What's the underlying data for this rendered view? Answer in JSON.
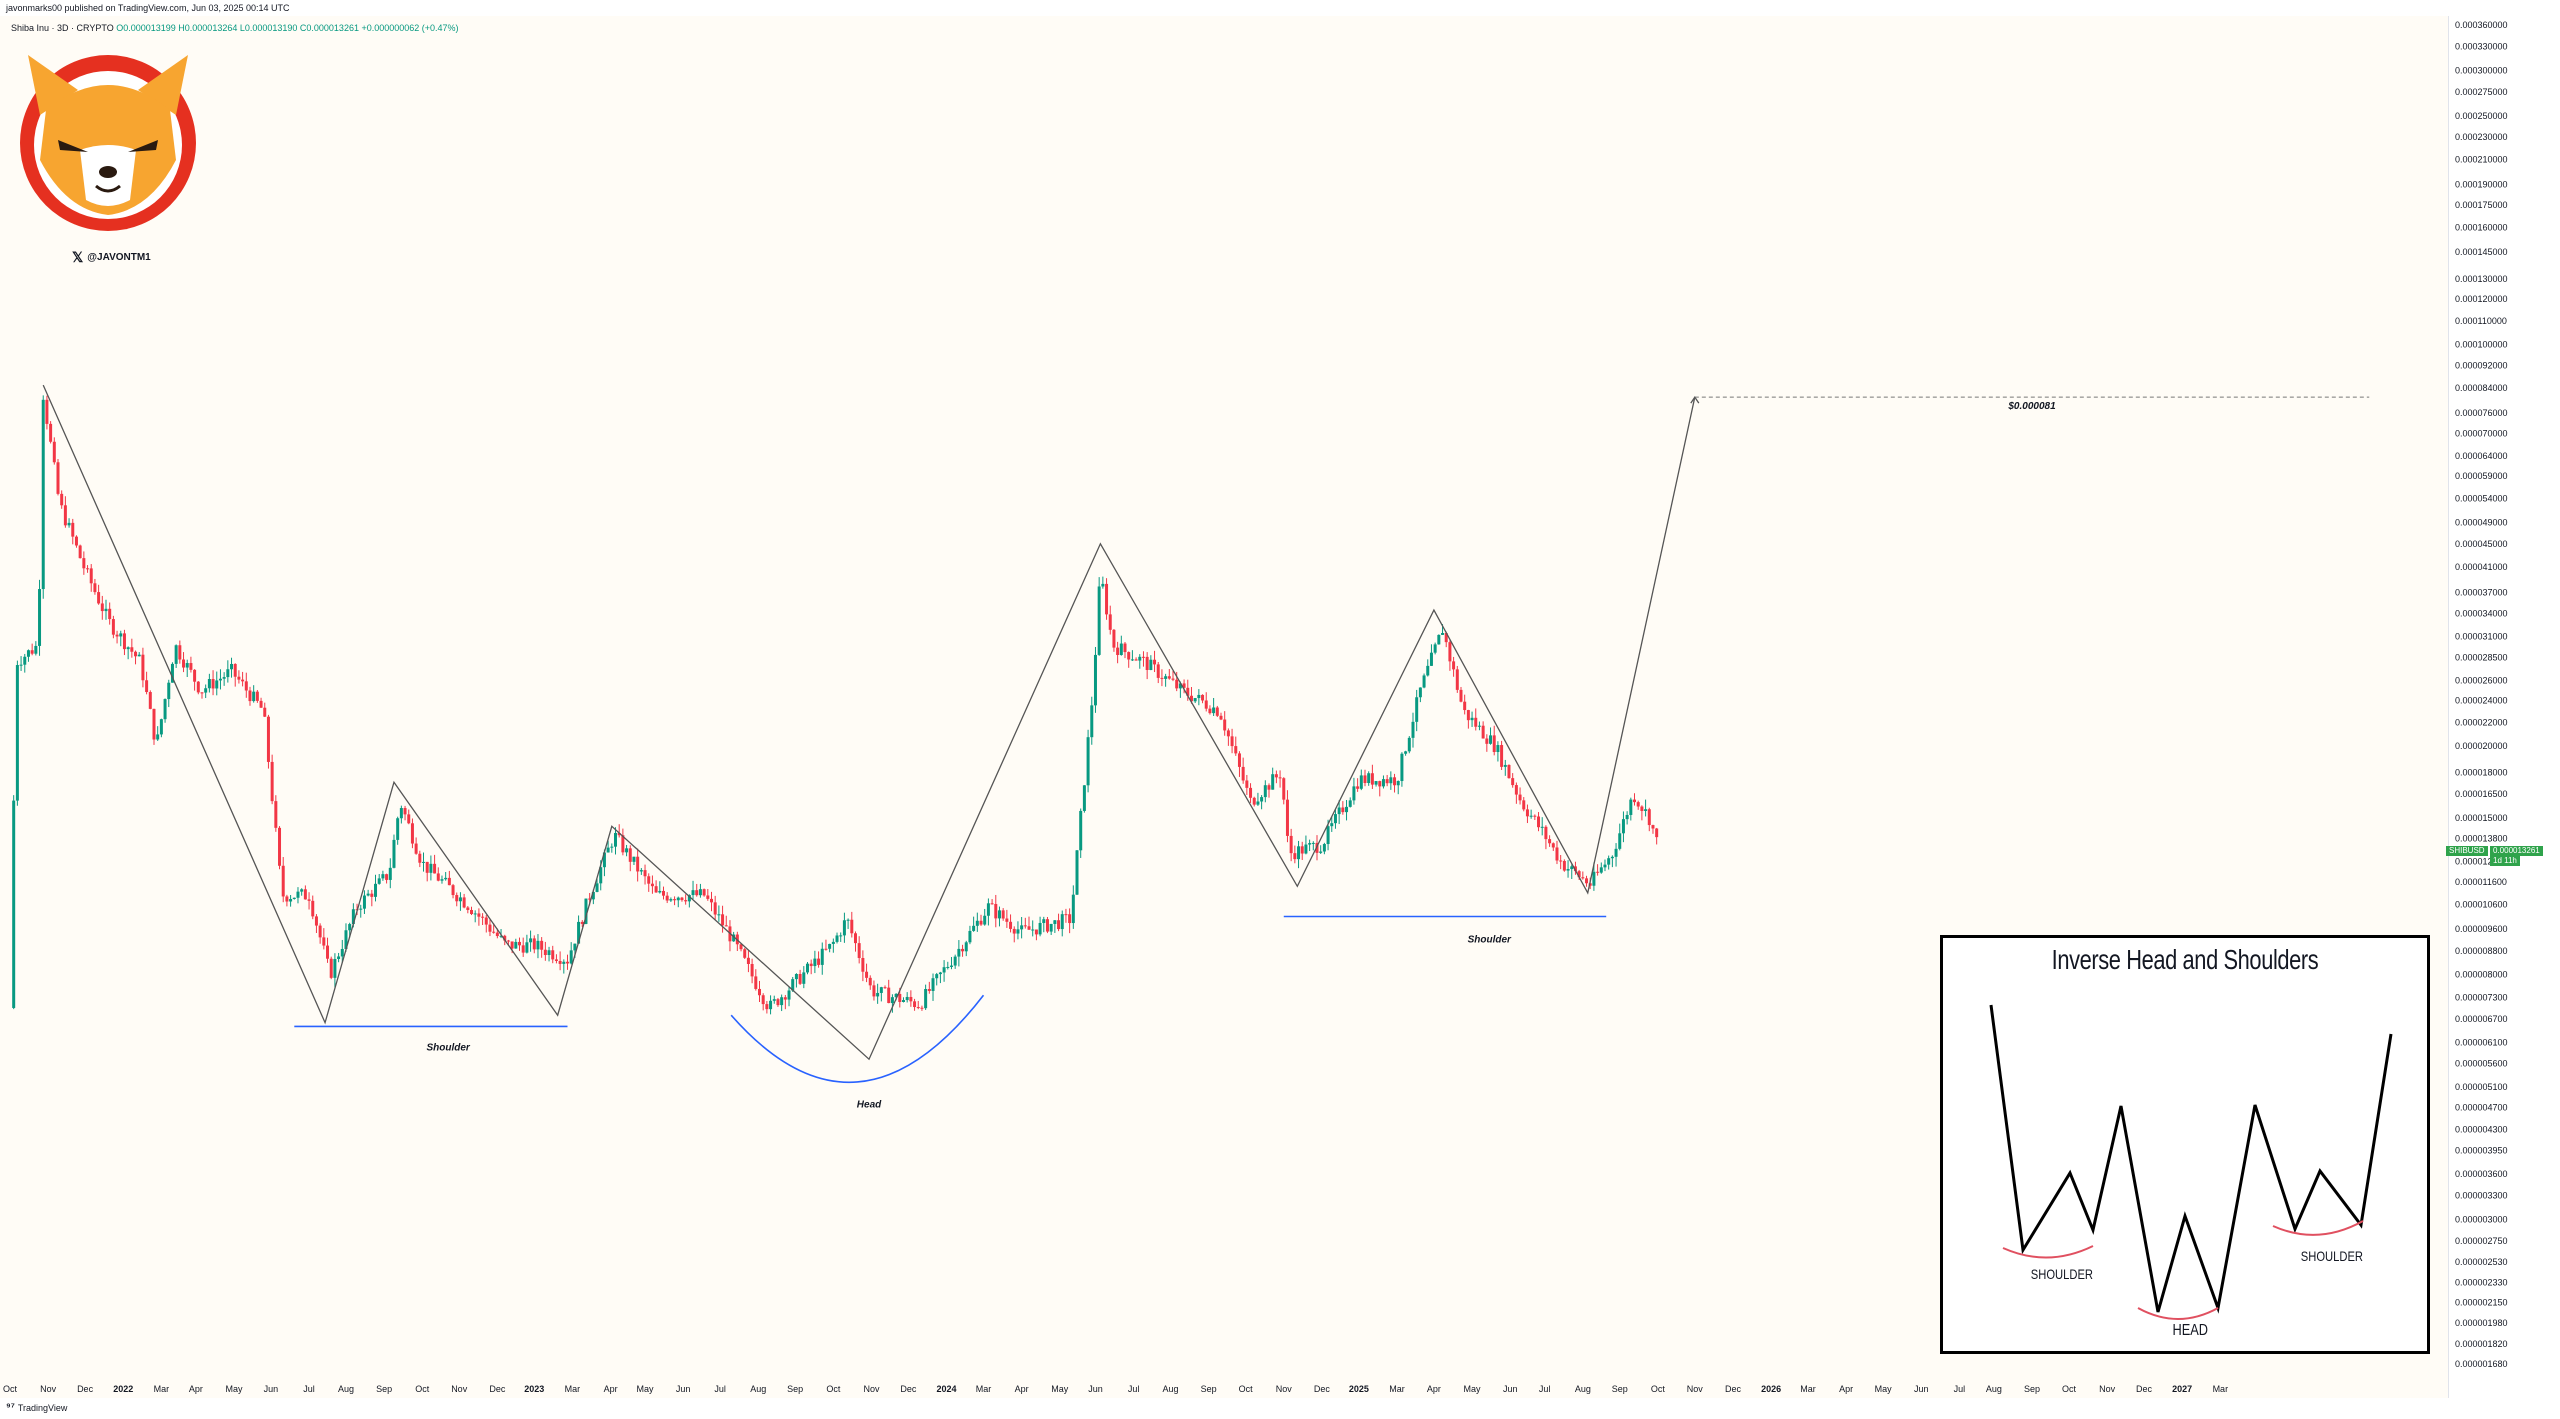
{
  "header": {
    "published": "javonmarks00 published on TradingView.com, Jun 03, 2025 00:14 UTC",
    "symbol": "Shiba Inu · 3D · CRYPTO",
    "ohlc": "O0.000013199  H0.000013264  L0.000013190  C0.000013261  +0.000000062 (+0.47%)"
  },
  "branding": {
    "handle": "@JAVONTM1",
    "x_icon": "x-logo-icon",
    "logo_icon": "shiba-inu-logo-icon",
    "footer": "TradingView"
  },
  "colors": {
    "up": "#089981",
    "down": "#f23645",
    "baseline": "#2962ff",
    "pattern_line": "#555555",
    "inset_arc": "#e05060"
  },
  "chart_data": {
    "type": "candlestick",
    "title": "Shiba Inu · 3D · CRYPTO",
    "scale": "log",
    "grid": false,
    "x_ticks": [
      "Oct",
      "Nov",
      "Dec",
      "2022",
      "Mar",
      "Apr",
      "May",
      "Jun",
      "Jul",
      "Aug",
      "Sep",
      "Oct",
      "Nov",
      "Dec",
      "2023",
      "Mar",
      "Apr",
      "May",
      "Jun",
      "Jul",
      "Aug",
      "Sep",
      "Oct",
      "Nov",
      "Dec",
      "2024",
      "Mar",
      "Apr",
      "May",
      "Jun",
      "Jul",
      "Aug",
      "Sep",
      "Oct",
      "Nov",
      "Dec",
      "2025",
      "Mar",
      "Apr",
      "May",
      "Jun",
      "Jul",
      "Aug",
      "Sep",
      "Oct",
      "Nov",
      "Dec",
      "2026",
      "Mar",
      "Apr",
      "May",
      "Jun",
      "Jul",
      "Aug",
      "Sep",
      "Oct",
      "Nov",
      "Dec",
      "2027",
      "Mar"
    ],
    "bold_x_ticks": [
      "2022",
      "2023",
      "2024",
      "2025",
      "2026",
      "2027"
    ],
    "y_ticks": [
      "0.000360000",
      "0.000330000",
      "0.000300000",
      "0.000275000",
      "0.000250000",
      "0.000230000",
      "0.000210000",
      "0.000190000",
      "0.000175000",
      "0.000160000",
      "0.000145000",
      "0.000130000",
      "0.000120000",
      "0.000110000",
      "0.000100000",
      "0.000092000",
      "0.000084000",
      "0.000076000",
      "0.000070000",
      "0.000064000",
      "0.000059000",
      "0.000054000",
      "0.000049000",
      "0.000045000",
      "0.000041000",
      "0.000037000",
      "0.000034000",
      "0.000031000",
      "0.000028500",
      "0.000026000",
      "0.000024000",
      "0.000022000",
      "0.000020000",
      "0.000018000",
      "0.000016500",
      "0.000015000",
      "0.000013800",
      "0.000012600",
      "0.000011600",
      "0.000010600",
      "0.000009600",
      "0.000008800",
      "0.000008000",
      "0.000007300",
      "0.000006700",
      "0.000006100",
      "0.000005600",
      "0.000005100",
      "0.000004700",
      "0.000004300",
      "0.000003950",
      "0.000003600",
      "0.000003300",
      "0.000003000",
      "0.000002750",
      "0.000002530",
      "0.000002330",
      "0.000002150",
      "0.000001980",
      "0.000001820",
      "0.000001680"
    ],
    "ylim": [
      1.68e-06,
      0.00036
    ],
    "xlim": [
      "2021-10-01",
      "2027-03-31"
    ],
    "price_path": [
      [
        "2021-10-01",
        7e-06
      ],
      [
        "2021-10-06",
        2.8e-05
      ],
      [
        "2021-10-24",
        3e-05
      ],
      [
        "2021-10-28",
        8.2e-05
      ],
      [
        "2021-11-10",
        5.3e-05
      ],
      [
        "2021-11-30",
        4.1e-05
      ],
      [
        "2021-12-20",
        3.3e-05
      ],
      [
        "2022-01-15",
        2.8e-05
      ],
      [
        "2022-01-28",
        2e-05
      ],
      [
        "2022-02-12",
        3e-05
      ],
      [
        "2022-03-05",
        2.5e-05
      ],
      [
        "2022-03-30",
        2.7e-05
      ],
      [
        "2022-04-25",
        2.3e-05
      ],
      [
        "2022-05-10",
        1.1e-05
      ],
      [
        "2022-06-01",
        1.1e-05
      ],
      [
        "2022-06-18",
        8e-06
      ],
      [
        "2022-07-10",
        1.05e-05
      ],
      [
        "2022-08-05",
        1.2e-05
      ],
      [
        "2022-08-14",
        1.6e-05
      ],
      [
        "2022-09-01",
        1.25e-05
      ],
      [
        "2022-10-10",
        1.05e-05
      ],
      [
        "2022-11-08",
        9e-06
      ],
      [
        "2022-12-01",
        9e-06
      ],
      [
        "2022-12-28",
        8.5e-06
      ],
      [
        "2023-01-15",
        1.1e-05
      ],
      [
        "2023-02-04",
        1.4e-05
      ],
      [
        "2023-03-10",
        1.1e-05
      ],
      [
        "2023-04-18",
        1.1e-05
      ],
      [
        "2023-05-10",
        9.3e-06
      ],
      [
        "2023-06-10",
        7e-06
      ],
      [
        "2023-07-02",
        7.8e-06
      ],
      [
        "2023-07-31",
        9e-06
      ],
      [
        "2023-08-12",
        1e-05
      ],
      [
        "2023-09-01",
        7.5e-06
      ],
      [
        "2023-10-10",
        7.1e-06
      ],
      [
        "2023-11-10",
        8.8e-06
      ],
      [
        "2023-12-05",
        1.05e-05
      ],
      [
        "2024-01-01",
        9.5e-06
      ],
      [
        "2024-02-10",
        1e-05
      ],
      [
        "2024-02-28",
        2.5e-05
      ],
      [
        "2024-03-05",
        4e-05
      ],
      [
        "2024-03-15",
        3e-05
      ],
      [
        "2024-04-10",
        2.8e-05
      ],
      [
        "2024-05-10",
        2.5e-05
      ],
      [
        "2024-06-10",
        2.3e-05
      ],
      [
        "2024-07-05",
        1.6e-05
      ],
      [
        "2024-07-30",
        1.8e-05
      ],
      [
        "2024-08-05",
        1.3e-05
      ],
      [
        "2024-09-01",
        1.35e-05
      ],
      [
        "2024-10-01",
        1.75e-05
      ],
      [
        "2024-11-01",
        1.75e-05
      ],
      [
        "2024-11-20",
        2.5e-05
      ],
      [
        "2024-12-08",
        3.2e-05
      ],
      [
        "2024-12-25",
        2.3e-05
      ],
      [
        "2025-01-20",
        2e-05
      ],
      [
        "2025-02-10",
        1.6e-05
      ],
      [
        "2025-03-01",
        1.4e-05
      ],
      [
        "2025-03-15",
        1.25e-05
      ],
      [
        "2025-04-07",
        1.15e-05
      ],
      [
        "2025-04-25",
        1.3e-05
      ],
      [
        "2025-05-12",
        1.65e-05
      ],
      [
        "2025-05-25",
        1.5e-05
      ],
      [
        "2025-06-02",
        1.32e-05
      ]
    ],
    "pattern_line": [
      [
        "2021-10-28",
        8.5e-05
      ],
      [
        "2022-06-14",
        6.6e-06
      ],
      [
        "2022-08-09",
        1.73e-05
      ],
      [
        "2022-12-20",
        6.8e-06
      ],
      [
        "2023-02-02",
        1.45e-05
      ],
      [
        "2023-08-30",
        5.7e-06
      ],
      [
        "2024-03-05",
        4.5e-05
      ],
      [
        "2024-08-12",
        1.14e-05
      ],
      [
        "2024-12-01",
        3.45e-05
      ],
      [
        "2025-04-05",
        1.11e-05
      ],
      [
        "2025-07-01",
        8.1e-05
      ]
    ],
    "target_label": "$0.000081",
    "target_value": 8.1e-05,
    "target_line_x": [
      "2025-07-01",
      "2026-12-31"
    ],
    "annotations": [
      {
        "label": "Shoulder",
        "x": "2022-09-22",
        "y": 5.9e-06
      },
      {
        "label": "Head",
        "x": "2023-08-30",
        "y": 4.7e-06
      },
      {
        "label": "Shoulder",
        "x": "2025-01-15",
        "y": 9.1e-06
      }
    ],
    "baselines": [
      {
        "x": [
          "2022-05-20",
          "2022-12-28"
        ],
        "y": 6.5e-06
      },
      {
        "x": [
          "2024-08-01",
          "2025-04-20"
        ],
        "y": 1.01e-05
      }
    ],
    "head_arc": {
      "x": [
        "2023-05-10",
        "2023-12-01"
      ],
      "y": [
        6.8e-06,
        5.1e-06
      ]
    },
    "last_price": {
      "symbol": "SHIBUSD",
      "value": "0.000013261",
      "countdown": "1d 11h"
    }
  },
  "inset": {
    "title": "Inverse Head and Shoulders",
    "left_label": "SHOULDER",
    "head_label": "HEAD",
    "right_label": "SHOULDER"
  }
}
